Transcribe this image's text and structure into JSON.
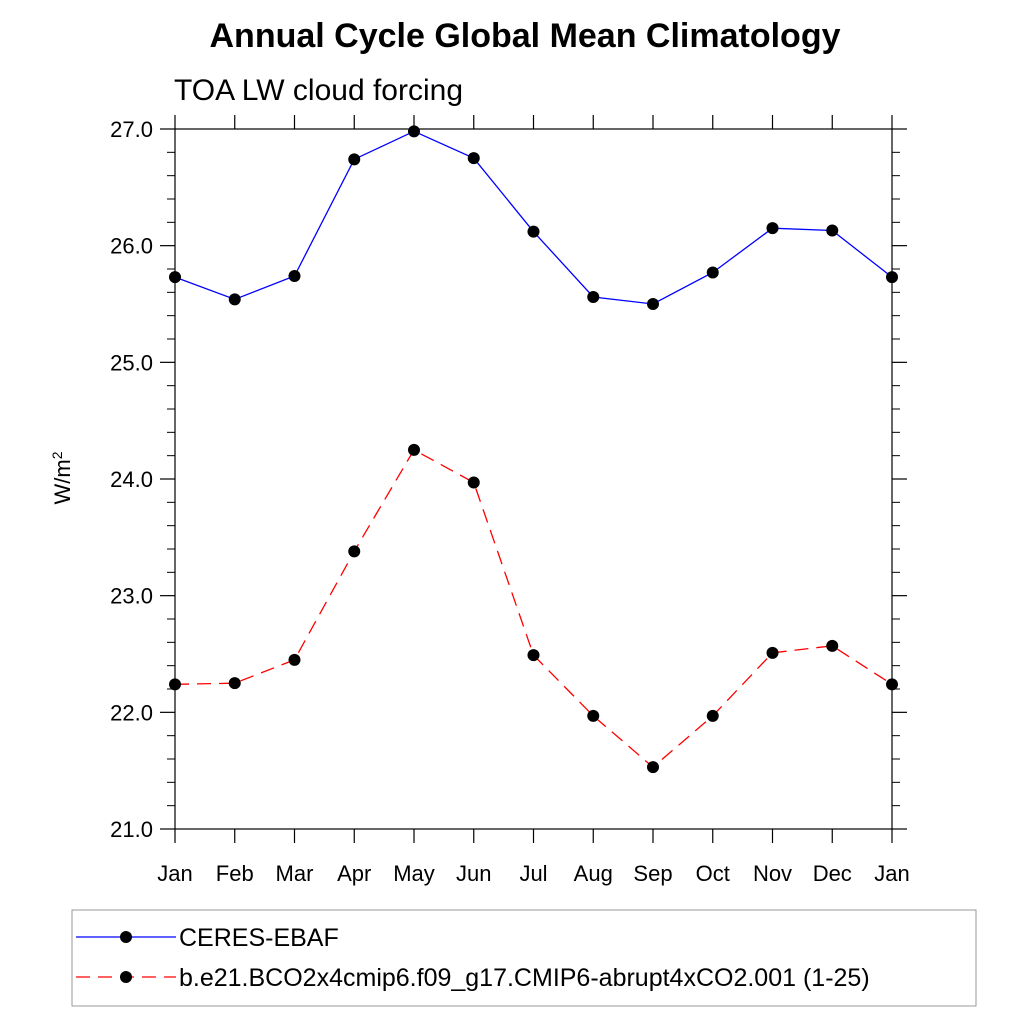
{
  "chart_data": {
    "type": "line",
    "title": "Annual Cycle Global Mean Climatology",
    "subtitle": "TOA LW cloud forcing",
    "ylabel_base": "W/m",
    "ylabel_sup": "2",
    "xlabel": "",
    "categories": [
      "Jan",
      "Feb",
      "Mar",
      "Apr",
      "May",
      "Jun",
      "Jul",
      "Aug",
      "Sep",
      "Oct",
      "Nov",
      "Dec",
      "Jan"
    ],
    "ylim": [
      21.0,
      27.0
    ],
    "yticks": [
      21.0,
      22.0,
      23.0,
      24.0,
      25.0,
      26.0,
      27.0
    ],
    "ytick_labels": [
      "21.0",
      "22.0",
      "23.0",
      "24.0",
      "25.0",
      "26.0",
      "27.0"
    ],
    "grid": false,
    "legend_position": "bottom",
    "series": [
      {
        "name": "CERES-EBAF",
        "color": "#0000ff",
        "line_style": "solid",
        "marker": "filled-circle",
        "values": [
          25.73,
          25.54,
          25.74,
          26.74,
          26.98,
          26.75,
          26.12,
          25.56,
          25.5,
          25.77,
          26.15,
          26.13,
          25.73
        ]
      },
      {
        "name": "b.e21.BCO2x4cmip6.f09_g17.CMIP6-abrupt4xCO2.001 (1-25)",
        "color": "#ff0000",
        "line_style": "dashed",
        "marker": "filled-circle",
        "values": [
          22.24,
          22.25,
          22.45,
          23.38,
          24.25,
          23.97,
          22.49,
          21.97,
          21.53,
          21.97,
          22.51,
          22.57,
          22.24
        ]
      }
    ]
  }
}
